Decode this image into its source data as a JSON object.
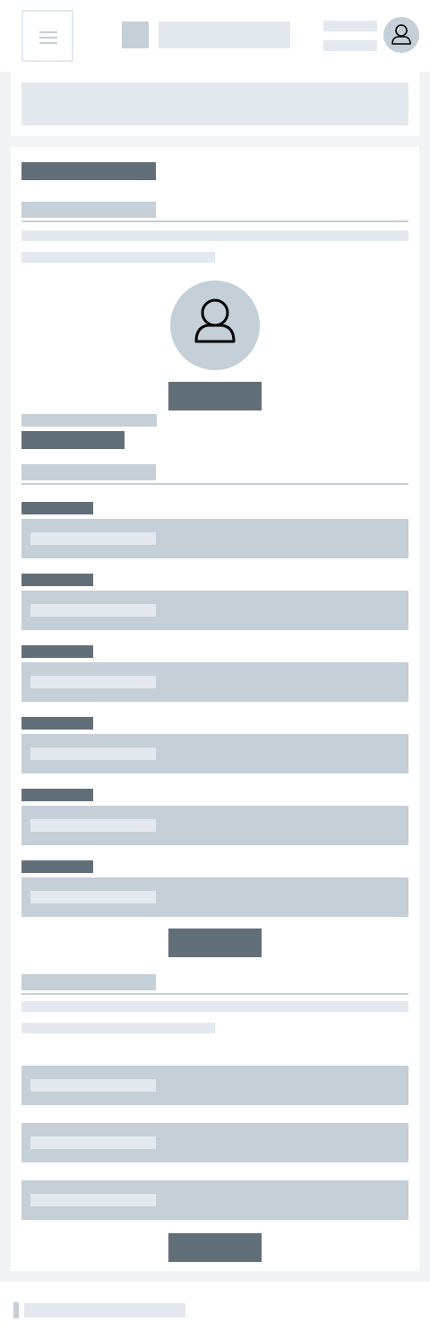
{
  "header": {
    "menu_icon": "hamburger-menu-icon",
    "logo": "logo-placeholder",
    "user_icon": "user-avatar-icon"
  },
  "profile": {
    "avatar_icon": "user-icon"
  },
  "colors": {
    "page_background": "#f2f3f5",
    "card_background": "#ffffff",
    "placeholder_light": "#e3e9ef",
    "placeholder_mid": "#c4cfd8",
    "placeholder_dark": "#626f79"
  }
}
